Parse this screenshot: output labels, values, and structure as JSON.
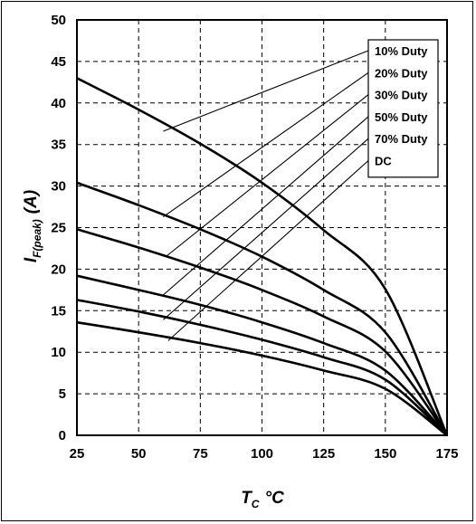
{
  "chart_data": {
    "type": "line",
    "xlim": [
      25,
      175
    ],
    "ylim": [
      0,
      50
    ],
    "x_ticks": [
      "25",
      "50",
      "75",
      "100",
      "125",
      "150",
      "175"
    ],
    "y_ticks": [
      "0",
      "5",
      "10",
      "15",
      "20",
      "25",
      "30",
      "35",
      "40",
      "45",
      "50"
    ],
    "grid": true,
    "xlabel": {
      "main": "T",
      "sub": "C",
      "unit": "°C"
    },
    "ylabel": {
      "main": "I",
      "sub": "F(peak)",
      "unit": "(A)"
    },
    "legend_position": "top-right",
    "series": [
      {
        "name": "10% Duty",
        "x": [
          25,
          50,
          75,
          100,
          125,
          150,
          175
        ],
        "y": [
          43,
          39.2,
          35.1,
          30.4,
          24.7,
          17.6,
          0
        ]
      },
      {
        "name": "20% Duty",
        "x": [
          25,
          50,
          75,
          100,
          125,
          150,
          175
        ],
        "y": [
          30.4,
          27.7,
          24.8,
          21.5,
          17.5,
          12.4,
          0
        ]
      },
      {
        "name": "30% Duty",
        "x": [
          25,
          50,
          75,
          100,
          125,
          150,
          175
        ],
        "y": [
          24.8,
          22.6,
          20.2,
          17.5,
          14.3,
          10.1,
          0
        ]
      },
      {
        "name": "50% Duty",
        "x": [
          25,
          50,
          75,
          100,
          125,
          150,
          175
        ],
        "y": [
          19.2,
          17.5,
          15.7,
          13.6,
          11.1,
          7.8,
          0
        ]
      },
      {
        "name": "70% Duty",
        "x": [
          25,
          50,
          75,
          100,
          125,
          150,
          175
        ],
        "y": [
          16.3,
          14.9,
          13.3,
          11.5,
          9.4,
          6.7,
          0
        ]
      },
      {
        "name": "DC",
        "x": [
          25,
          50,
          75,
          100,
          125,
          150,
          175
        ],
        "y": [
          13.6,
          12.4,
          11.1,
          9.6,
          7.8,
          5.6,
          0
        ]
      }
    ]
  }
}
